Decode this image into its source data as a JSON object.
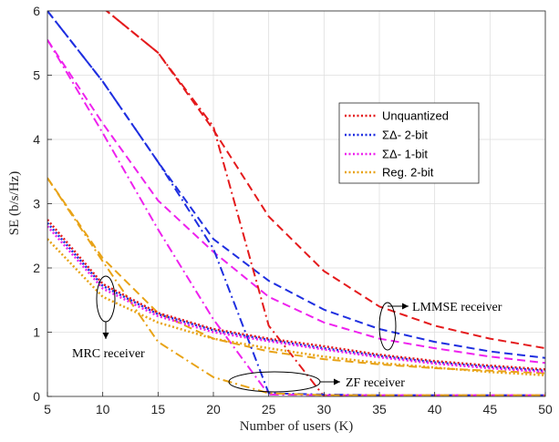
{
  "chart_data": {
    "type": "line",
    "title": "",
    "xlabel": "Number of users (K)",
    "ylabel": "SE (b/s/Hz)",
    "xlim": [
      5,
      50
    ],
    "ylim": [
      0,
      6
    ],
    "xticks": [
      5,
      10,
      15,
      20,
      25,
      30,
      35,
      40,
      45,
      50
    ],
    "yticks": [
      0,
      1,
      2,
      3,
      4,
      5,
      6
    ],
    "grid": true,
    "legend": {
      "placement": "upper-right",
      "entries": [
        {
          "label": "Unquantized",
          "color": "#e41a1c"
        },
        {
          "label": "ΣΔ- 2-bit",
          "color": "#1f2fe0"
        },
        {
          "label": "ΣΔ- 1-bit",
          "color": "#ee22ee"
        },
        {
          "label": "Reg. 2-bit",
          "color": "#e8a317"
        }
      ]
    },
    "annotations": [
      {
        "text": "LMMSE receiver",
        "receiver": "LMMSE"
      },
      {
        "text": "MRC receiver",
        "receiver": "MRC"
      },
      {
        "text": "ZF receiver",
        "receiver": "ZF"
      }
    ],
    "x": [
      5,
      10,
      15,
      20,
      25,
      30,
      35,
      40,
      45,
      50
    ],
    "series": [
      {
        "receiver": "LMMSE",
        "style": "dashed",
        "color": "#e41a1c",
        "values": [
          null,
          6.05,
          5.35,
          4.15,
          2.8,
          1.95,
          1.4,
          1.1,
          0.9,
          0.75
        ]
      },
      {
        "receiver": "LMMSE",
        "style": "dashed",
        "color": "#1f2fe0",
        "values": [
          6.0,
          4.9,
          3.65,
          2.45,
          1.8,
          1.35,
          1.05,
          0.85,
          0.7,
          0.6
        ]
      },
      {
        "receiver": "LMMSE",
        "style": "dashed",
        "color": "#ee22ee",
        "values": [
          5.55,
          4.25,
          3.05,
          2.25,
          1.55,
          1.15,
          0.9,
          0.75,
          0.62,
          0.52
        ]
      },
      {
        "receiver": "LMMSE",
        "style": "dashed",
        "color": "#e8a317",
        "values": [
          3.4,
          2.15,
          1.3,
          0.9,
          0.7,
          0.58,
          0.5,
          0.44,
          0.4,
          0.36
        ]
      },
      {
        "receiver": "ZF",
        "style": "dashdot",
        "color": "#e41a1c",
        "values": [
          null,
          6.05,
          5.35,
          4.2,
          1.1,
          0.0,
          0.0,
          0.0,
          0.0,
          0.0
        ]
      },
      {
        "receiver": "ZF",
        "style": "dashdot",
        "color": "#1f2fe0",
        "values": [
          6.0,
          4.9,
          3.65,
          2.3,
          0.05,
          0.03,
          0.02,
          0.02,
          0.02,
          0.02
        ]
      },
      {
        "receiver": "ZF",
        "style": "dashdot",
        "color": "#ee22ee",
        "values": [
          5.55,
          4.1,
          2.6,
          1.2,
          0.03,
          0.02,
          0.02,
          0.02,
          0.02,
          0.02
        ]
      },
      {
        "receiver": "ZF",
        "style": "dashdot",
        "color": "#e8a317",
        "values": [
          3.4,
          2.1,
          0.85,
          0.3,
          0.05,
          0.02,
          0.02,
          0.02,
          0.02,
          0.02
        ]
      },
      {
        "receiver": "MRC",
        "style": "dotted",
        "color": "#e41a1c",
        "values": [
          2.75,
          1.75,
          1.3,
          1.05,
          0.9,
          0.78,
          0.65,
          0.55,
          0.48,
          0.42
        ]
      },
      {
        "receiver": "MRC",
        "style": "dotted",
        "color": "#1f2fe0",
        "values": [
          2.7,
          1.72,
          1.28,
          1.03,
          0.88,
          0.75,
          0.63,
          0.53,
          0.46,
          0.4
        ]
      },
      {
        "receiver": "MRC",
        "style": "dotted",
        "color": "#ee22ee",
        "values": [
          2.65,
          1.68,
          1.25,
          1.0,
          0.86,
          0.73,
          0.61,
          0.51,
          0.44,
          0.38
        ]
      },
      {
        "receiver": "MRC",
        "style": "dotted",
        "color": "#e8a317",
        "values": [
          2.45,
          1.55,
          1.15,
          0.9,
          0.75,
          0.62,
          0.52,
          0.45,
          0.38,
          0.33
        ]
      }
    ]
  }
}
